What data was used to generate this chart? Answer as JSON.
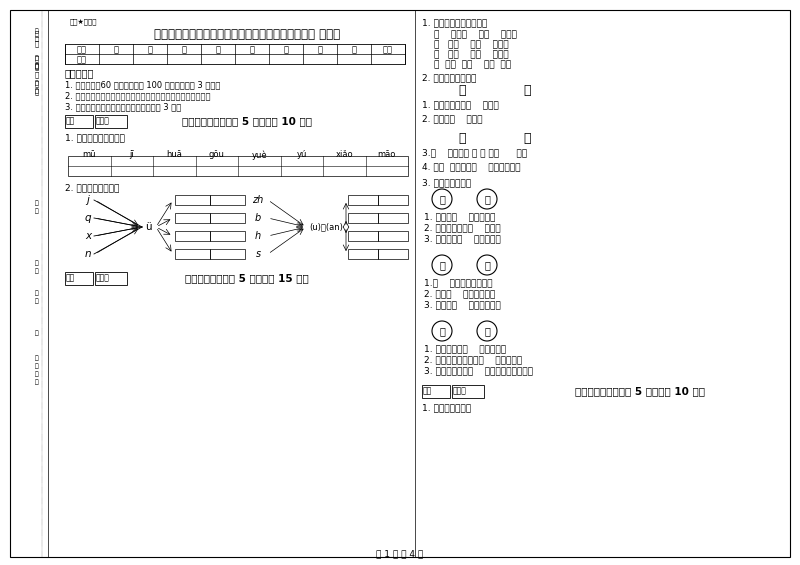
{
  "title": "台州市实验小学一年级语文上学期全真模拟考试试卷 附答案",
  "subtitle": "题库★自用版",
  "bg_color": "#ffffff",
  "page_footer": "第 1 页 共 4 页",
  "table_headers": [
    "题号",
    "一",
    "二",
    "三",
    "四",
    "五",
    "六",
    "七",
    "八",
    "总分"
  ],
  "notes": [
    "1. 考试时间：60 分钟，满分为 100 分（含卷面分 3 分）。",
    "2. 请首先按要求在试卷的指定位置填写您的姓名、班级、学号。",
    "3. 不要在试卷上乱写乱画，卷面不整洁扣 3 分。"
  ],
  "pinyin_row": [
    "mū",
    "jī",
    "huā",
    "gŏu",
    "yuè",
    "yú",
    "xiǎo",
    "māo"
  ],
  "section1_title": "一、拼音部分（每题 5 分，共计 10 分）",
  "section2_title": "二、填空题（每题 5 分，共计 15 分）",
  "section3_title": "三、识字写字（每题 5 分，共计 10 分）",
  "consonants_left": [
    "j",
    "q",
    "x",
    "n"
  ],
  "vowel_center_left": "ü",
  "consonants_right": [
    "zh",
    "b",
    "h",
    "s"
  ],
  "vowel_center_right": "(u)－(an)",
  "right_q1_lines": [
    "1. 我会按课文内容填空。",
    "（    ）去（    ）（    ）里，",
    "烟   村（    ）（    ）家。",
    "亭   台（    ）（    ）座，",
    "（  ）（  ）（    ）枝  花。"
  ],
  "right_q2_header": "2. 你能选择正确吗？",
  "right_q2_chars": [
    "入",
    "八"
  ],
  "right_q2_sents": [
    "1. 我们来自四面（    ）方。",
    "2. 这里是（    ）口。"
  ],
  "right_q2_chars2": [
    "天",
    "大"
  ],
  "right_q2_sents2": [
    "3.（    ）雨下了 整 整 一（      ）。",
    "4. 明（  ）老师请（    ）家吃水果。"
  ],
  "right_q3_header": "3. 我会选字填空。",
  "circle_group1": [
    "近",
    "进"
  ],
  "fill_g1": [
    "1. 阳光照（    ）了教室。",
    "2. 现在离春节很（    ）了。",
    "3. 你怎么不（    ）门的呢？"
  ],
  "circle_group2": [
    "三",
    "山"
  ],
  "fill_g2": [
    "1.（    ）上开满了鲜花。",
    "2. 我有（    ）个好朋友。",
    "3. 草地上（    ）字在吃草。"
  ],
  "circle_group3": [
    "在",
    "再"
  ],
  "fill_g3": [
    "1. 小熊一家住（    ）山洞里。",
    "2. 老师让小明把古诗（    ）读一遍。",
    "3. 老师告诉我们（    ）家要走注意安全。"
  ],
  "right_scoring_line": "1. 看拼音写词语。",
  "left_side_labels": [
    [
      "字条",
      30,
      540
    ],
    [
      "姓名",
      30,
      495
    ],
    [
      "班级",
      30,
      458
    ],
    [
      "内不",
      30,
      390
    ],
    [
      "学校",
      30,
      345
    ],
    [
      "班级",
      30,
      305
    ],
    [
      "（粘贴）",
      30,
      250
    ]
  ]
}
